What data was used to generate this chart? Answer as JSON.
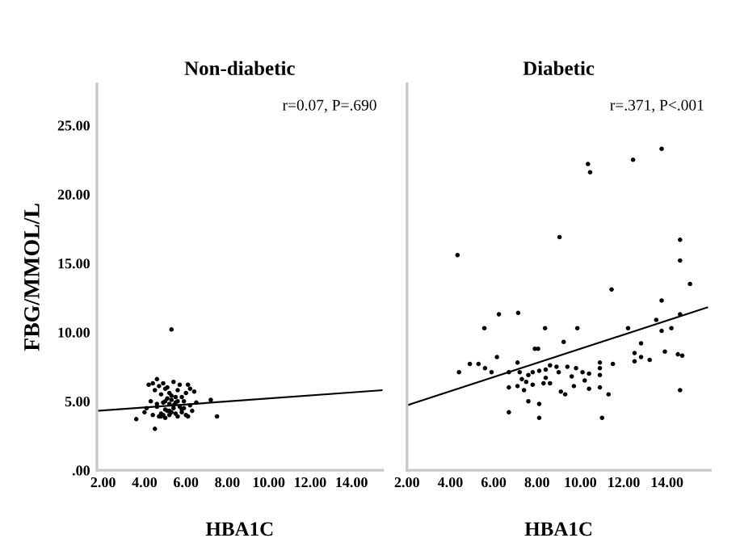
{
  "chart_data": [
    {
      "type": "scatter",
      "title": "Non-diabetic",
      "ylabel": "FBG/MMOL/L",
      "xlabel": "HBA1C",
      "annotations": [
        "r=0.07, P=.690"
      ],
      "xlim": [
        1.7,
        15.5
      ],
      "ylim": [
        0,
        28
      ],
      "xticks": [
        {
          "value": 2,
          "label": "2.00"
        },
        {
          "value": 4,
          "label": "4.00"
        },
        {
          "value": 6,
          "label": "6.00"
        },
        {
          "value": 8,
          "label": "8.00"
        },
        {
          "value": 10,
          "label": "10.00"
        },
        {
          "value": 12,
          "label": "12.00"
        },
        {
          "value": 14,
          "label": "14.00"
        }
      ],
      "yticks": [
        {
          "value": 0,
          "label": ".00"
        },
        {
          "value": 5,
          "label": "5.00"
        },
        {
          "value": 10,
          "label": "10.00"
        },
        {
          "value": 15,
          "label": "15.00"
        },
        {
          "value": 20,
          "label": "20.00"
        },
        {
          "value": 25,
          "label": "25.00"
        }
      ],
      "grid": false,
      "legend": false,
      "series": [
        {
          "marker": "circle",
          "color": "#000000",
          "x": [
            5.3,
            3.6,
            4.5,
            7.5,
            4.6,
            7.2,
            4.2,
            4.0,
            4.4,
            4.7,
            4.8,
            4.9,
            5.0,
            5.1,
            5.2,
            5.3,
            5.4,
            5.5,
            5.6,
            5.8,
            6.0,
            6.1,
            6.3,
            4.3,
            4.6,
            4.9,
            5.1,
            5.2,
            5.4,
            5.5,
            5.7,
            5.9,
            6.2,
            4.5,
            4.8,
            5.0,
            5.2,
            5.3,
            5.6,
            5.8,
            6.0,
            4.1,
            4.9,
            5.1,
            5.4,
            5.7,
            6.2,
            6.4,
            4.4,
            4.7,
            5.0,
            5.3,
            5.5,
            5.9,
            6.1,
            4.8,
            5.2,
            5.6,
            5.0,
            4.6,
            5.8,
            6.5
          ],
          "values": [
            10.2,
            3.7,
            3.0,
            3.9,
            6.6,
            5.1,
            6.2,
            4.2,
            4.0,
            3.9,
            4.1,
            4.0,
            3.8,
            4.3,
            4.0,
            4.2,
            4.5,
            4.1,
            3.9,
            4.4,
            4.0,
            3.9,
            4.3,
            5.0,
            4.6,
            4.9,
            5.2,
            4.8,
            4.7,
            5.3,
            4.6,
            5.0,
            4.7,
            5.8,
            5.5,
            5.9,
            5.6,
            5.4,
            5.8,
            5.3,
            5.6,
            4.5,
            6.3,
            6.0,
            6.4,
            6.2,
            5.9,
            5.7,
            6.3,
            6.1,
            4.4,
            5.1,
            4.9,
            4.5,
            6.2,
            3.9,
            4.3,
            5.0,
            5.0,
            4.8,
            4.2,
            4.9
          ]
        },
        {
          "type": "line",
          "color": "#000000",
          "x": [
            1.7,
            15.5
          ],
          "values": [
            4.3,
            5.8
          ]
        }
      ]
    },
    {
      "type": "scatter",
      "title": "Diabetic",
      "xlabel": "HBA1C",
      "annotations": [
        "r=.371, P<.001"
      ],
      "xlim": [
        2,
        16
      ],
      "ylim": [
        0,
        28
      ],
      "tick_labels": "x",
      "xticks": [
        {
          "value": 2,
          "label": "2.00"
        },
        {
          "value": 4,
          "label": "4.00"
        },
        {
          "value": 6,
          "label": "6.00"
        },
        {
          "value": 8,
          "label": "8.00"
        },
        {
          "value": 10,
          "label": "10.00"
        },
        {
          "value": 12,
          "label": "12.00"
        },
        {
          "value": 14,
          "label": "14.00"
        }
      ],
      "grid": false,
      "legend": false,
      "series": [
        {
          "marker": "circle",
          "color": "#000000",
          "x": [
            13.75,
            12.43,
            10.35,
            10.45,
            9.04,
            4.33,
            14.6,
            14.6,
            15.06,
            11.44,
            13.75,
            14.6,
            6.24,
            7.13,
            5.57,
            8.37,
            9.86,
            12.2,
            13.5,
            13.75,
            14.2,
            9.23,
            7.9,
            8.05,
            12.8,
            12.5,
            12.5,
            12.8,
            13.2,
            13.9,
            14.5,
            14.7,
            6.15,
            4.4,
            4.9,
            5.3,
            5.6,
            5.9,
            6.7,
            7.1,
            7.2,
            7.6,
            7.8,
            8.1,
            8.4,
            8.6,
            8.9,
            9.0,
            9.4,
            9.8,
            10.1,
            10.4,
            10.9,
            10.9,
            10.9,
            11.5,
            6.7,
            7.1,
            7.4,
            7.8,
            8.3,
            8.6,
            9.1,
            9.3,
            9.7,
            10.4,
            10.9,
            11.3,
            6.7,
            7.6,
            8.1,
            8.1,
            11.0,
            14.6,
            7.3,
            7.5,
            8.4,
            9.6,
            10.2
          ],
          "values": [
            23.3,
            22.5,
            22.2,
            21.6,
            16.9,
            15.6,
            16.7,
            15.2,
            13.5,
            13.1,
            12.3,
            11.3,
            11.3,
            11.4,
            10.3,
            10.3,
            10.3,
            10.3,
            10.9,
            10.1,
            10.3,
            9.3,
            8.8,
            8.8,
            9.2,
            8.5,
            7.9,
            8.2,
            8.0,
            8.6,
            8.4,
            8.3,
            8.2,
            7.1,
            7.7,
            7.7,
            7.4,
            7.1,
            7.1,
            7.8,
            7.1,
            6.9,
            7.1,
            7.2,
            7.3,
            7.6,
            7.5,
            7.1,
            7.5,
            7.4,
            7.1,
            7.0,
            7.8,
            7.4,
            6.9,
            7.7,
            6.0,
            6.1,
            5.8,
            6.2,
            6.3,
            6.3,
            5.7,
            5.5,
            6.1,
            5.9,
            6.0,
            5.5,
            4.2,
            5.0,
            4.8,
            3.8,
            3.8,
            5.8,
            6.6,
            6.4,
            6.7,
            6.8,
            6.5
          ]
        },
        {
          "type": "line",
          "color": "#000000",
          "x": [
            2,
            15.85
          ],
          "values": [
            4.7,
            11.8
          ]
        }
      ]
    }
  ]
}
